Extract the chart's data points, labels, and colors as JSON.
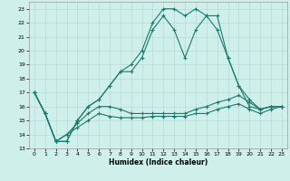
{
  "xlabel": "Humidex (Indice chaleur)",
  "xlim": [
    -0.5,
    23.5
  ],
  "ylim": [
    13,
    23.5
  ],
  "xticks": [
    0,
    1,
    2,
    3,
    4,
    5,
    6,
    7,
    8,
    9,
    10,
    11,
    12,
    13,
    14,
    15,
    16,
    17,
    18,
    19,
    20,
    21,
    22,
    23
  ],
  "yticks": [
    13,
    14,
    15,
    16,
    17,
    18,
    19,
    20,
    21,
    22,
    23
  ],
  "bg_color": "#cff0ea",
  "grid_color": "#b8d8d4",
  "line_color": "#1a7a6e",
  "lines": [
    [
      17.0,
      15.5,
      13.5,
      13.5,
      15.0,
      16.0,
      16.5,
      17.5,
      18.5,
      19.0,
      20.0,
      22.0,
      23.0,
      23.0,
      22.5,
      23.0,
      22.5,
      22.5,
      19.5,
      17.5,
      16.5,
      15.8,
      16.0,
      16.0
    ],
    [
      17.0,
      15.5,
      13.5,
      13.5,
      15.0,
      16.0,
      16.5,
      17.5,
      18.5,
      18.5,
      19.5,
      21.5,
      22.5,
      21.5,
      19.5,
      21.5,
      22.5,
      21.5,
      19.5,
      17.5,
      16.0,
      15.8,
      16.0,
      16.0
    ],
    [
      17.0,
      15.5,
      13.5,
      14.0,
      14.8,
      15.5,
      16.0,
      16.0,
      15.8,
      15.5,
      15.5,
      15.5,
      15.5,
      15.5,
      15.5,
      15.8,
      16.0,
      16.3,
      16.5,
      16.8,
      16.3,
      15.8,
      16.0,
      16.0
    ],
    [
      17.0,
      15.5,
      13.5,
      14.0,
      14.5,
      15.0,
      15.5,
      15.3,
      15.2,
      15.2,
      15.2,
      15.3,
      15.3,
      15.3,
      15.3,
      15.5,
      15.5,
      15.8,
      16.0,
      16.2,
      15.8,
      15.5,
      15.8,
      16.0
    ]
  ]
}
